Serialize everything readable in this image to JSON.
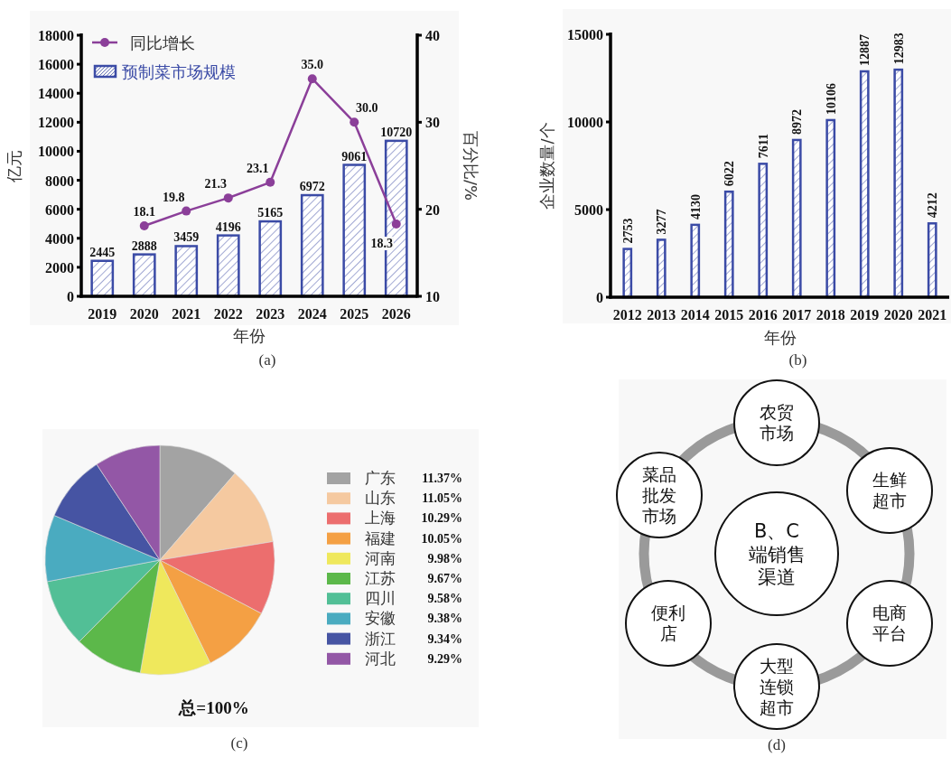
{
  "chart_data": [
    {
      "type": "bar",
      "categories": [
        "2019",
        "2020",
        "2021",
        "2022",
        "2023",
        "2024",
        "2025",
        "2026"
      ],
      "xlabel": "年份",
      "ylabel": "亿元",
      "y2label": "百分比/%",
      "ylim": [
        0,
        18000
      ],
      "yticks": [
        0,
        2000,
        4000,
        6000,
        8000,
        10000,
        12000,
        14000,
        16000,
        18000
      ],
      "y2lim": [
        10,
        40
      ],
      "y2ticks": [
        10,
        20,
        30,
        40
      ],
      "legend": "top left",
      "marker": "circle",
      "data_labels": true,
      "annotations": [
        "(a)"
      ],
      "series": [
        {
          "name": "同比增长",
          "type": "line",
          "axis": "y2",
          "color": "#8b3f99",
          "values": [
            null,
            18.1,
            19.8,
            21.3,
            23.1,
            35.0,
            30.0,
            18.3
          ],
          "value_labels": [
            null,
            "18.1",
            "19.8",
            "21.3",
            "23.1",
            "35.0",
            "30.0",
            "18.3"
          ]
        },
        {
          "name": "预制菜市场规模",
          "type": "bar",
          "color": "#3b4ba6",
          "values": [
            2445,
            2888,
            3459,
            4196,
            5165,
            6972,
            9061,
            10720
          ]
        }
      ]
    },
    {
      "type": "bar",
      "categories": [
        "2012",
        "2013",
        "2014",
        "2015",
        "2016",
        "2017",
        "2018",
        "2019",
        "2020",
        "2021"
      ],
      "values": [
        2753,
        3277,
        4130,
        6022,
        7611,
        8972,
        10106,
        12887,
        12983,
        4212
      ],
      "color": "#3b4ba6",
      "xlabel": "年份",
      "ylabel": "企业数量/个",
      "ylim": [
        0,
        15000
      ],
      "yticks": [
        0,
        5000,
        10000,
        15000
      ],
      "data_labels": true,
      "annotations": [
        "(b)"
      ]
    },
    {
      "type": "pie",
      "categories": [
        "广东",
        "山东",
        "上海",
        "福建",
        "河南",
        "江苏",
        "四川",
        "安徽",
        "浙江",
        "河北"
      ],
      "values": [
        11.37,
        11.05,
        10.29,
        10.05,
        9.98,
        9.67,
        9.58,
        9.38,
        9.34,
        9.29
      ],
      "value_labels": [
        "11.37%",
        "11.05%",
        "10.29%",
        "10.05%",
        "9.98%",
        "9.67%",
        "9.58%",
        "9.38%",
        "9.34%",
        "9.29%"
      ],
      "colors": [
        "#a3a3a3",
        "#f5c9a0",
        "#ec6e6e",
        "#f4a044",
        "#efe85c",
        "#5cb84a",
        "#52bf96",
        "#4aabc0",
        "#4654a3",
        "#9357a6"
      ],
      "legend": "right",
      "annotations": [
        "总=100%",
        "(c)"
      ]
    },
    {
      "type": "other",
      "annotations": [
        "B、C端销售渠道",
        "农贸市场",
        "生鲜超市",
        "电商平台",
        "大型连锁超市",
        "便利店",
        "菜品批发市场",
        "(d)"
      ]
    }
  ]
}
